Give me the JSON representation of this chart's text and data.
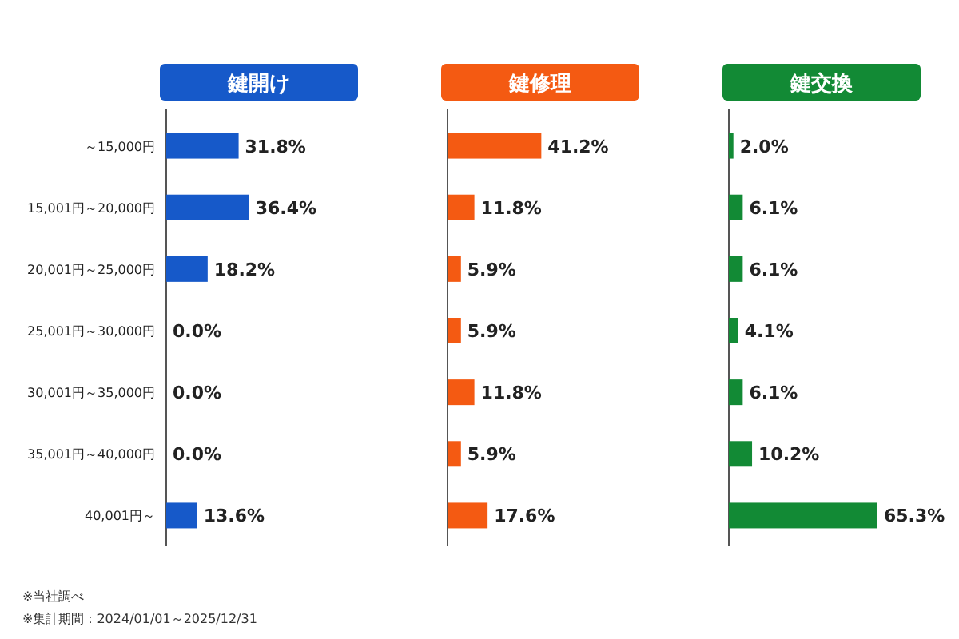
{
  "chart_data": [
    {
      "type": "bar",
      "orientation": "horizontal",
      "title": "鍵開け",
      "color": "#1659c9",
      "categories": [
        "～15,000円",
        "15,001円～20,000円",
        "20,001円～25,000円",
        "25,001円～30,000円",
        "30,001円～35,000円",
        "35,001円～40,000円",
        "40,001円～"
      ],
      "values": [
        31.8,
        36.4,
        18.2,
        0.0,
        0.0,
        0.0,
        13.6
      ],
      "value_labels": [
        "31.8%",
        "36.4%",
        "18.2%",
        "0.0%",
        "0.0%",
        "0.0%",
        "13.6%"
      ],
      "tick_labels": "y",
      "annotations": [
        "※当社調べ",
        "※集計期間：2024/01/01～2025/12/31"
      ]
    },
    {
      "type": "bar",
      "orientation": "horizontal",
      "title": "鍵修理",
      "color": "#f45a12",
      "values": [
        41.2,
        11.8,
        5.9,
        5.9,
        11.8,
        5.9,
        17.6
      ],
      "value_labels": [
        "41.2%",
        "11.8%",
        "5.9%",
        "5.9%",
        "11.8%",
        "5.9%",
        "17.6%"
      ],
      "tick_labels": false
    },
    {
      "type": "bar",
      "orientation": "horizontal",
      "title": "鍵交換",
      "color": "#128a35",
      "values": [
        2.0,
        6.1,
        6.1,
        4.1,
        6.1,
        10.2,
        65.3
      ],
      "value_labels": [
        "2.0%",
        "6.1%",
        "6.1%",
        "4.1%",
        "6.1%",
        "10.2%",
        "65.3%"
      ],
      "tick_labels": false
    }
  ]
}
